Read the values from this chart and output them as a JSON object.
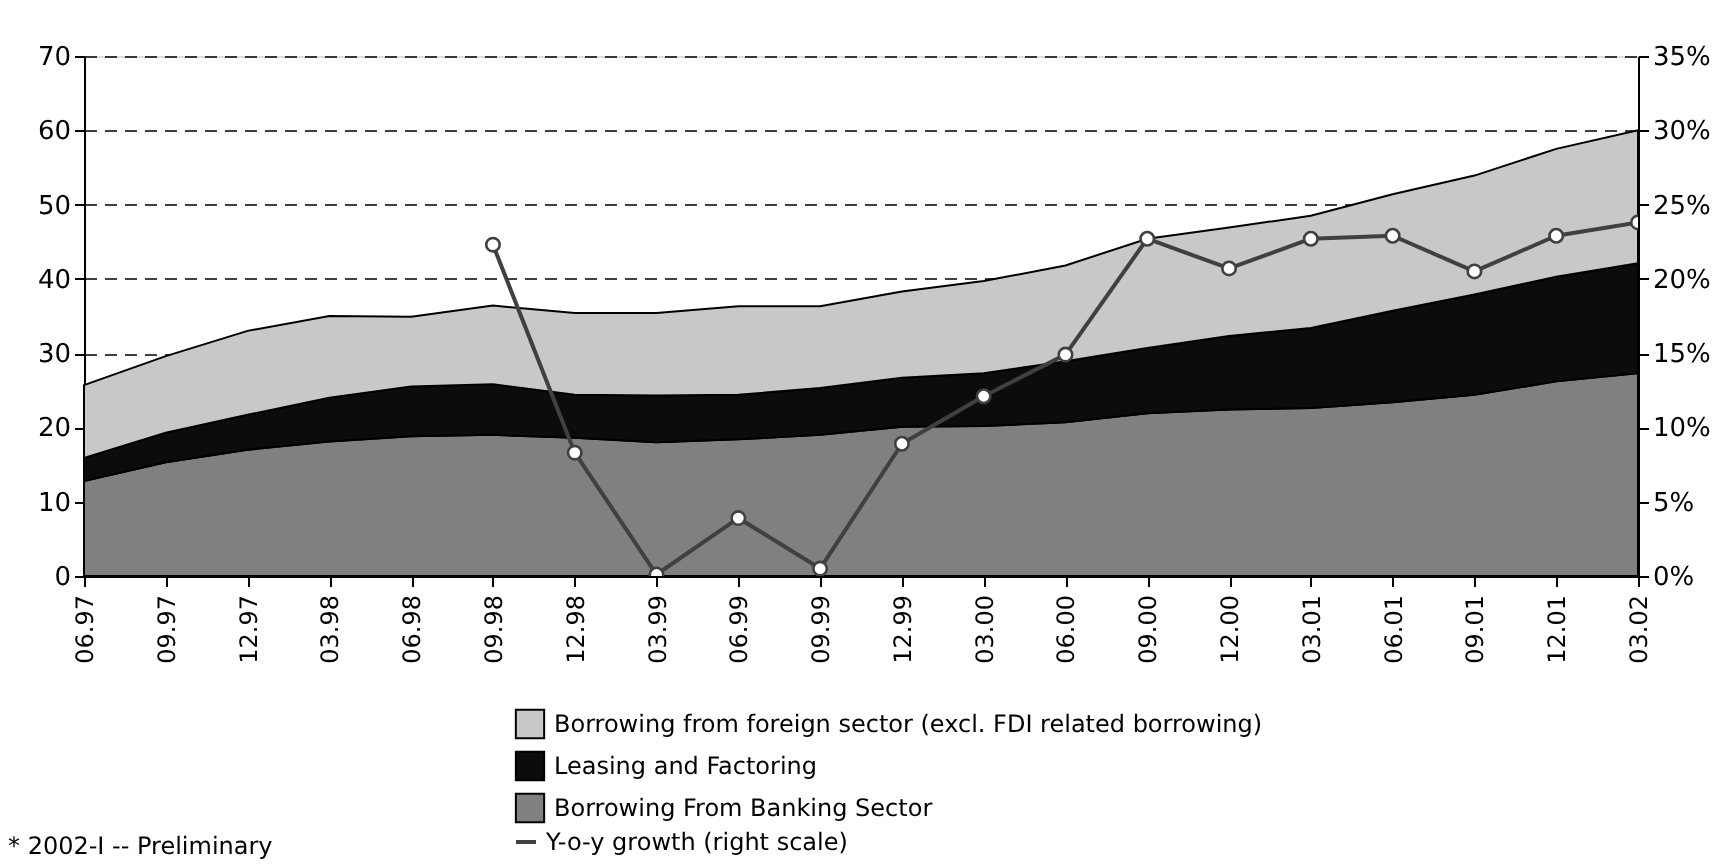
{
  "chart_data": {
    "type": "area",
    "stacked": true,
    "categories": [
      "06.97",
      "09.97",
      "12.97",
      "03.98",
      "06.98",
      "09.98",
      "12.98",
      "03.99",
      "06.99",
      "09.99",
      "12.99",
      "03.00",
      "06.00",
      "09.00",
      "12.00",
      "03.01",
      "06.01",
      "09.01",
      "12.01",
      "03.02"
    ],
    "series": [
      {
        "name": "Borrowing From Banking Sector",
        "color": "#808080",
        "values": [
          12.8,
          15.3,
          17.0,
          18.1,
          18.8,
          19.0,
          18.6,
          18.0,
          18.4,
          19.0,
          20.1,
          20.2,
          20.7,
          21.9,
          22.4,
          22.6,
          23.4,
          24.4,
          26.2,
          27.3
        ]
      },
      {
        "name": "Leasing and Factoring",
        "color": "#0c0c0c",
        "values": [
          3.1,
          4.0,
          4.7,
          5.9,
          6.7,
          6.8,
          5.8,
          6.3,
          6.0,
          6.3,
          6.6,
          7.1,
          8.2,
          8.8,
          9.9,
          10.8,
          12.3,
          13.5,
          14.1,
          14.8
        ]
      },
      {
        "name": "Borrowing from foreign sector (excl. FDI related borrowing)",
        "color": "#c8c8c8",
        "values": [
          9.8,
          10.3,
          11.3,
          11.0,
          9.4,
          10.6,
          11.0,
          11.1,
          11.9,
          11.0,
          11.6,
          12.4,
          12.9,
          14.7,
          14.6,
          15.1,
          15.7,
          16.0,
          17.2,
          17.9
        ]
      },
      {
        "name": "Y-o-y growth (right scale)",
        "type": "line",
        "axis": "y2",
        "color": "#404040",
        "marker": "circle",
        "values": [
          null,
          null,
          null,
          null,
          null,
          22.3,
          8.3,
          0.1,
          3.9,
          0.5,
          8.9,
          12.1,
          14.9,
          22.7,
          20.7,
          22.7,
          22.9,
          20.5,
          22.9,
          23.8
        ]
      }
    ],
    "ylim": [
      0,
      70
    ],
    "yticks": [
      0,
      10,
      20,
      30,
      40,
      50,
      60,
      70
    ],
    "y2lim": [
      0,
      35
    ],
    "y2ticks": [
      {
        "value": 0,
        "label": "0%"
      },
      {
        "value": 5,
        "label": "5%"
      },
      {
        "value": 10,
        "label": "10%"
      },
      {
        "value": 15,
        "label": "15%"
      },
      {
        "value": 20,
        "label": "20%"
      },
      {
        "value": 25,
        "label": "25%"
      },
      {
        "value": 30,
        "label": "30%"
      },
      {
        "value": 35,
        "label": "35%"
      }
    ],
    "grid": "y",
    "legend": "bottom",
    "annotations": [
      "* 2002-I -- Preliminary"
    ]
  }
}
